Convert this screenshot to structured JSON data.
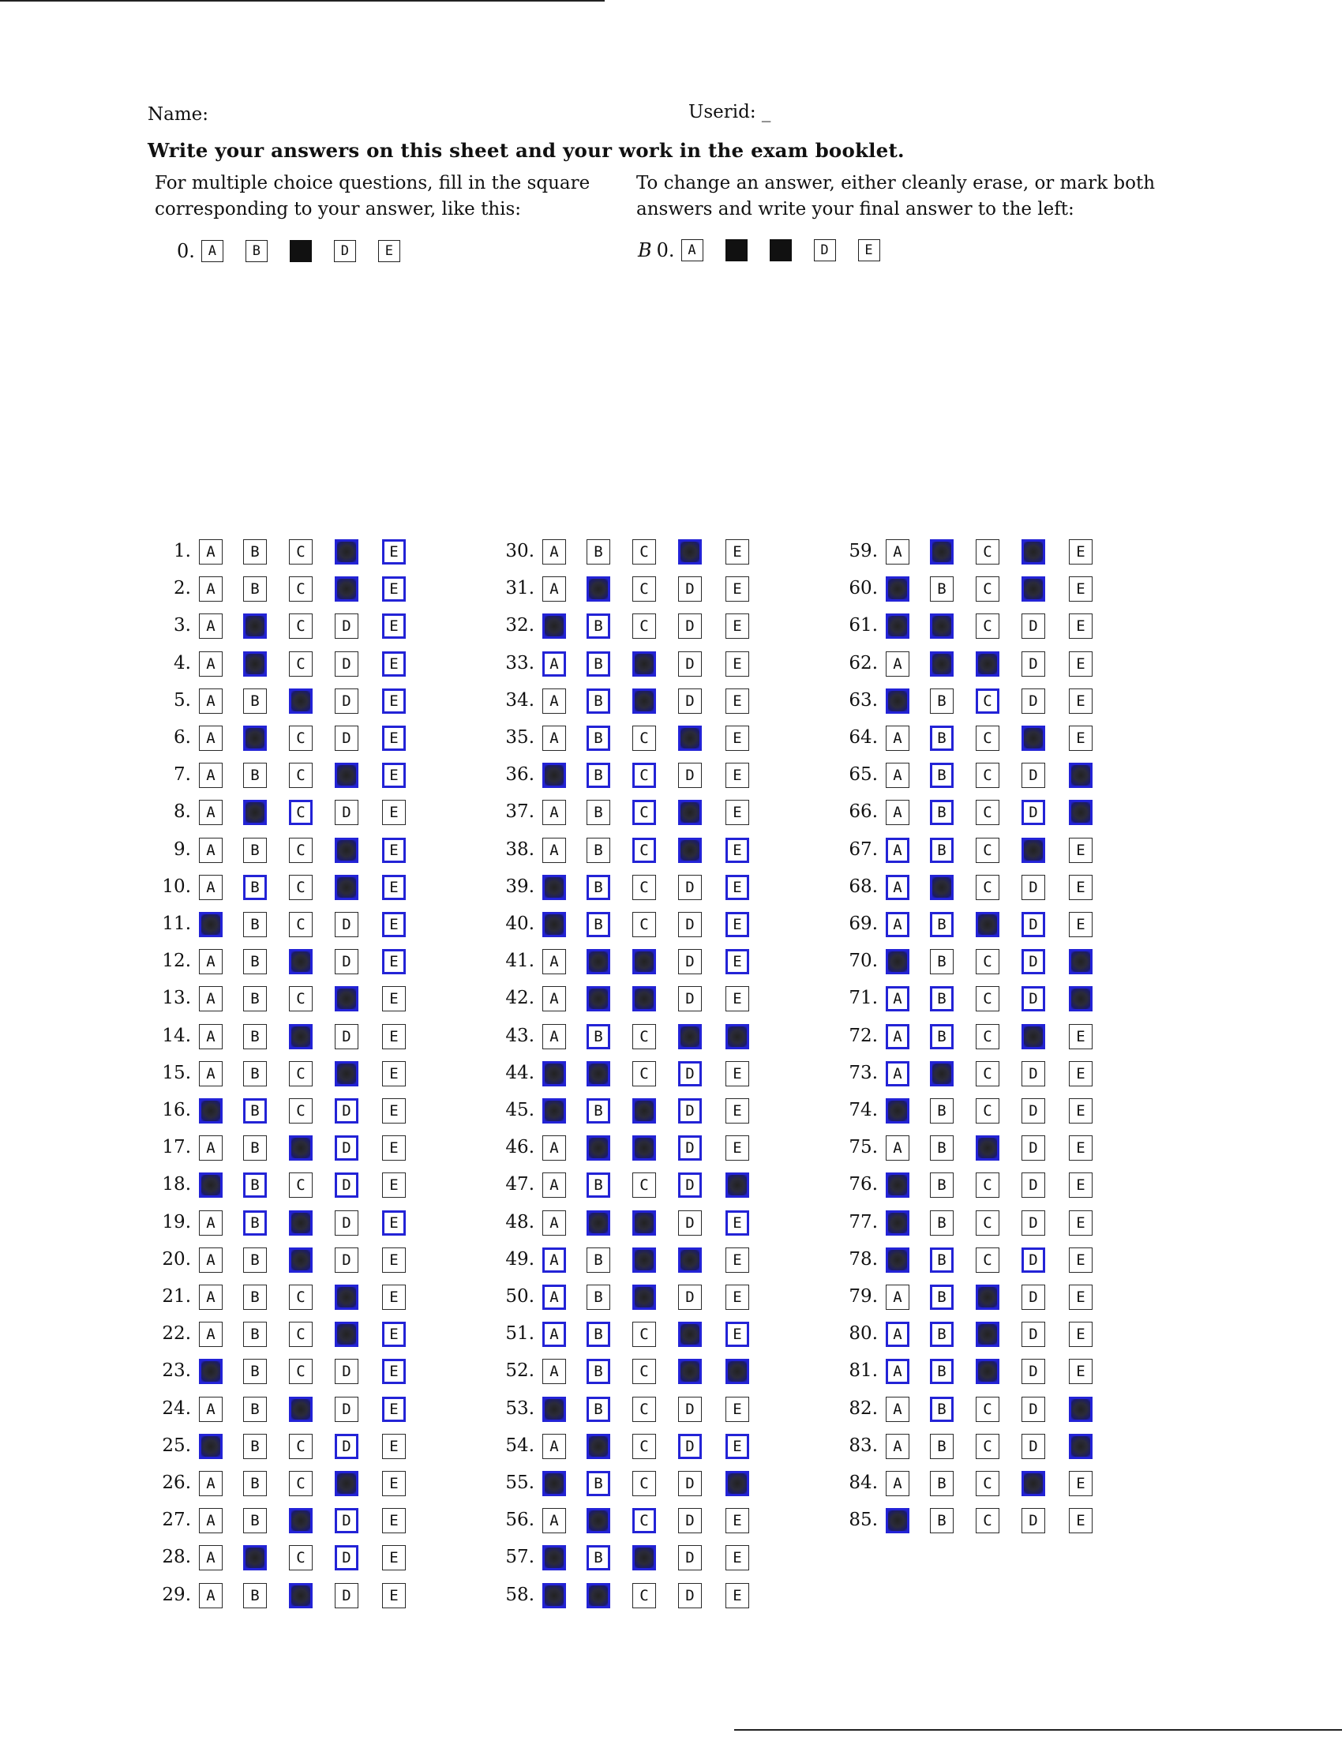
{
  "header": {
    "name_label": "Name:",
    "userid_label": "Userid: _",
    "instruction_title": "Write your answers on this sheet and your work in the exam booklet.",
    "left_instruction": "For multiple choice questions, fill in the square corresponding to your answer, like this:",
    "right_instruction": "To change an answer, either cleanly erase, or mark both answers and write your final answer to the left:"
  },
  "examples": {
    "left": {
      "label": "0.",
      "boxes": [
        {
          "letter": "A",
          "state": "empty"
        },
        {
          "letter": "B",
          "state": "empty"
        },
        {
          "letter": "C",
          "state": "filled"
        },
        {
          "letter": "D",
          "state": "empty"
        },
        {
          "letter": "E",
          "state": "empty"
        }
      ]
    },
    "right": {
      "prefix": "B",
      "label": "0.",
      "boxes": [
        {
          "letter": "A",
          "state": "empty"
        },
        {
          "letter": "B",
          "state": "filled"
        },
        {
          "letter": "C",
          "state": "filled"
        },
        {
          "letter": "D",
          "state": "empty"
        },
        {
          "letter": "E",
          "state": "empty"
        }
      ]
    }
  },
  "options": [
    "A",
    "B",
    "C",
    "D",
    "E"
  ],
  "colors": {
    "ink": "#111111",
    "blue_pen": "#2323d6"
  },
  "columns": [
    {
      "questions": [
        {
          "n": "1.",
          "f": [
            "D"
          ],
          "b": [
            "E"
          ]
        },
        {
          "n": "2.",
          "f": [
            "D"
          ],
          "b": [
            "E"
          ]
        },
        {
          "n": "3.",
          "f": [
            "B"
          ],
          "b": [
            "E"
          ]
        },
        {
          "n": "4.",
          "f": [
            "B"
          ],
          "b": [
            "E"
          ]
        },
        {
          "n": "5.",
          "f": [
            "C"
          ],
          "b": [
            "E"
          ]
        },
        {
          "n": "6.",
          "f": [
            "B"
          ],
          "b": [
            "E"
          ]
        },
        {
          "n": "7.",
          "f": [
            "D"
          ],
          "b": [
            "E"
          ]
        },
        {
          "n": "8.",
          "f": [
            "B"
          ],
          "b": [
            "C"
          ]
        },
        {
          "n": "9.",
          "f": [
            "D"
          ],
          "b": [
            "E"
          ]
        },
        {
          "n": "10.",
          "f": [
            "D"
          ],
          "b": [
            "B",
            "E"
          ]
        },
        {
          "n": "11.",
          "f": [
            "A"
          ],
          "b": [
            "E"
          ]
        },
        {
          "n": "12.",
          "f": [
            "C"
          ],
          "b": [
            "E"
          ]
        },
        {
          "n": "13.",
          "f": [
            "D"
          ],
          "b": []
        },
        {
          "n": "14.",
          "f": [
            "C"
          ],
          "b": []
        },
        {
          "n": "15.",
          "f": [
            "D"
          ],
          "b": []
        },
        {
          "n": "16.",
          "f": [
            "A"
          ],
          "b": [
            "B",
            "D"
          ]
        },
        {
          "n": "17.",
          "f": [
            "C"
          ],
          "b": [
            "D"
          ]
        },
        {
          "n": "18.",
          "f": [
            "A"
          ],
          "b": [
            "B",
            "D"
          ]
        },
        {
          "n": "19.",
          "f": [
            "C"
          ],
          "b": [
            "B",
            "E"
          ]
        },
        {
          "n": "20.",
          "f": [
            "C"
          ],
          "b": []
        },
        {
          "n": "21.",
          "f": [
            "D"
          ],
          "b": []
        },
        {
          "n": "22.",
          "f": [
            "D"
          ],
          "b": [
            "E"
          ]
        },
        {
          "n": "23.",
          "f": [
            "A"
          ],
          "b": [
            "E"
          ]
        },
        {
          "n": "24.",
          "f": [
            "C"
          ],
          "b": [
            "E"
          ]
        },
        {
          "n": "25.",
          "f": [
            "A"
          ],
          "b": [
            "D"
          ]
        },
        {
          "n": "26.",
          "f": [
            "D"
          ],
          "b": []
        },
        {
          "n": "27.",
          "f": [
            "C"
          ],
          "b": [
            "D"
          ]
        },
        {
          "n": "28.",
          "f": [
            "B"
          ],
          "b": [
            "D"
          ]
        },
        {
          "n": "29.",
          "f": [
            "C"
          ],
          "b": []
        }
      ]
    },
    {
      "questions": [
        {
          "n": "30.",
          "f": [
            "D"
          ],
          "b": []
        },
        {
          "n": "31.",
          "f": [
            "B"
          ],
          "b": []
        },
        {
          "n": "32.",
          "f": [
            "A"
          ],
          "b": [
            "B"
          ]
        },
        {
          "n": "33.",
          "f": [
            "C"
          ],
          "b": [
            "A",
            "B"
          ]
        },
        {
          "n": "34.",
          "f": [
            "C"
          ],
          "b": [
            "B"
          ]
        },
        {
          "n": "35.",
          "f": [
            "D"
          ],
          "b": [
            "B"
          ]
        },
        {
          "n": "36.",
          "f": [
            "A"
          ],
          "b": [
            "B",
            "C"
          ]
        },
        {
          "n": "37.",
          "f": [
            "D"
          ],
          "b": [
            "C"
          ]
        },
        {
          "n": "38.",
          "f": [
            "D"
          ],
          "b": [
            "C",
            "E"
          ]
        },
        {
          "n": "39.",
          "f": [
            "A"
          ],
          "b": [
            "B",
            "E"
          ]
        },
        {
          "n": "40.",
          "f": [
            "A"
          ],
          "b": [
            "B",
            "E"
          ]
        },
        {
          "n": "41.",
          "f": [
            "B",
            "C"
          ],
          "b": [
            "E"
          ]
        },
        {
          "n": "42.",
          "f": [
            "B",
            "C"
          ],
          "b": []
        },
        {
          "n": "43.",
          "f": [
            "D",
            "E"
          ],
          "b": [
            "B"
          ]
        },
        {
          "n": "44.",
          "f": [
            "A",
            "B"
          ],
          "b": [
            "D"
          ]
        },
        {
          "n": "45.",
          "f": [
            "A",
            "C"
          ],
          "b": [
            "B",
            "D"
          ]
        },
        {
          "n": "46.",
          "f": [
            "B",
            "C"
          ],
          "b": [
            "D"
          ]
        },
        {
          "n": "47.",
          "f": [
            "E"
          ],
          "b": [
            "B",
            "D"
          ]
        },
        {
          "n": "48.",
          "f": [
            "B",
            "C"
          ],
          "b": [
            "E"
          ]
        },
        {
          "n": "49.",
          "f": [
            "C",
            "D"
          ],
          "b": [
            "A"
          ]
        },
        {
          "n": "50.",
          "f": [
            "C"
          ],
          "b": [
            "A"
          ]
        },
        {
          "n": "51.",
          "f": [
            "D"
          ],
          "b": [
            "A",
            "B",
            "E"
          ]
        },
        {
          "n": "52.",
          "f": [
            "D",
            "E"
          ],
          "b": [
            "B"
          ]
        },
        {
          "n": "53.",
          "f": [
            "A"
          ],
          "b": [
            "B"
          ]
        },
        {
          "n": "54.",
          "f": [
            "B"
          ],
          "b": [
            "D",
            "E"
          ]
        },
        {
          "n": "55.",
          "f": [
            "A",
            "E"
          ],
          "b": [
            "B"
          ]
        },
        {
          "n": "56.",
          "f": [
            "B"
          ],
          "b": [
            "C"
          ]
        },
        {
          "n": "57.",
          "f": [
            "A",
            "C"
          ],
          "b": [
            "B"
          ]
        },
        {
          "n": "58.",
          "f": [
            "A",
            "B"
          ],
          "b": []
        }
      ]
    },
    {
      "questions": [
        {
          "n": "59.",
          "f": [
            "B",
            "D"
          ],
          "b": []
        },
        {
          "n": "60.",
          "f": [
            "A",
            "D"
          ],
          "b": []
        },
        {
          "n": "61.",
          "f": [
            "A",
            "B"
          ],
          "b": []
        },
        {
          "n": "62.",
          "f": [
            "B",
            "C"
          ],
          "b": []
        },
        {
          "n": "63.",
          "f": [
            "A"
          ],
          "b": [
            "C"
          ]
        },
        {
          "n": "64.",
          "f": [
            "D"
          ],
          "b": [
            "B"
          ]
        },
        {
          "n": "65.",
          "f": [
            "E"
          ],
          "b": [
            "B"
          ]
        },
        {
          "n": "66.",
          "f": [
            "E"
          ],
          "b": [
            "B",
            "D"
          ]
        },
        {
          "n": "67.",
          "f": [
            "D"
          ],
          "b": [
            "A",
            "B"
          ]
        },
        {
          "n": "68.",
          "f": [
            "B"
          ],
          "b": [
            "A"
          ]
        },
        {
          "n": "69.",
          "f": [
            "C"
          ],
          "b": [
            "A",
            "B",
            "D"
          ]
        },
        {
          "n": "70.",
          "f": [
            "A",
            "E"
          ],
          "b": [
            "D"
          ]
        },
        {
          "n": "71.",
          "f": [
            "E"
          ],
          "b": [
            "A",
            "B",
            "D"
          ]
        },
        {
          "n": "72.",
          "f": [
            "D"
          ],
          "b": [
            "A",
            "B"
          ]
        },
        {
          "n": "73.",
          "f": [
            "B"
          ],
          "b": [
            "A"
          ]
        },
        {
          "n": "74.",
          "f": [
            "A"
          ],
          "b": []
        },
        {
          "n": "75.",
          "f": [
            "C"
          ],
          "b": []
        },
        {
          "n": "76.",
          "f": [
            "A"
          ],
          "b": []
        },
        {
          "n": "77.",
          "f": [
            "A"
          ],
          "b": []
        },
        {
          "n": "78.",
          "f": [
            "A"
          ],
          "b": [
            "B",
            "D"
          ]
        },
        {
          "n": "79.",
          "f": [
            "C"
          ],
          "b": [
            "B"
          ]
        },
        {
          "n": "80.",
          "f": [
            "C"
          ],
          "b": [
            "A",
            "B"
          ]
        },
        {
          "n": "81.",
          "f": [
            "C"
          ],
          "b": [
            "A",
            "B"
          ]
        },
        {
          "n": "82.",
          "f": [
            "E"
          ],
          "b": [
            "B"
          ]
        },
        {
          "n": "83.",
          "f": [
            "E"
          ],
          "b": []
        },
        {
          "n": "84.",
          "f": [
            "D"
          ],
          "b": []
        },
        {
          "n": "85.",
          "f": [
            "A"
          ],
          "b": []
        }
      ]
    }
  ]
}
